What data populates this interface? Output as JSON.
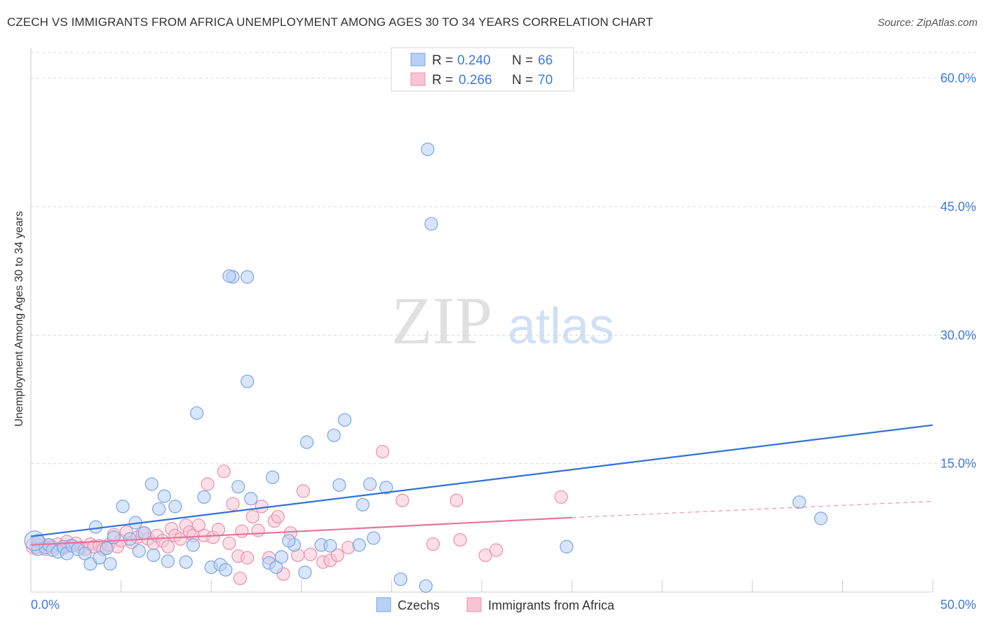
{
  "header": {
    "title": "CZECH VS IMMIGRANTS FROM AFRICA UNEMPLOYMENT AMONG AGES 30 TO 34 YEARS CORRELATION CHART",
    "source": "Source: ZipAtlas.com"
  },
  "watermark": {
    "zip": "ZIP",
    "atlas": "atlas"
  },
  "stats": [
    {
      "r_label": "R =",
      "r_value": "0.240",
      "n_label": "N =",
      "n_value": "66"
    },
    {
      "r_label": "R =",
      "r_value": "0.266",
      "n_label": "N =",
      "n_value": "70"
    }
  ],
  "legend_bottom": [
    "Czechs",
    "Immigrants from Africa"
  ],
  "colors": {
    "czech_fill": "#b8d0f5",
    "czech_stroke": "#7aa6e0",
    "czech_line": "#2f72d6",
    "africa_fill": "#f8c4d4",
    "africa_stroke": "#ec8fac",
    "africa_line": "#e8739b",
    "value_text": "#3d7bd9",
    "grid": "#d9d9d9"
  },
  "chart_data": {
    "type": "scatter",
    "title": "CZECH VS IMMIGRANTS FROM AFRICA UNEMPLOYMENT AMONG AGES 30 TO 34 YEARS CORRELATION CHART",
    "xlabel": "",
    "ylabel": "Unemployment Among Ages 30 to 34 years",
    "xlim": [
      0,
      50
    ],
    "ylim": [
      0,
      63
    ],
    "x_tick_labels": [
      "0.0%",
      "50.0%"
    ],
    "y_ticks": [
      15,
      30,
      45,
      60
    ],
    "y_tick_labels": [
      "15.0%",
      "30.0%",
      "45.0%",
      "60.0%"
    ],
    "series": [
      {
        "name": "Czechs",
        "r": 0.24,
        "n": 66,
        "trend": {
          "x": [
            0,
            50
          ],
          "y": [
            6.5,
            19.5
          ]
        },
        "points": [
          [
            0.4,
            6.0
          ],
          [
            0.4,
            5.0
          ],
          [
            0.8,
            5.2
          ],
          [
            1.0,
            5.5
          ],
          [
            1.2,
            4.9
          ],
          [
            1.5,
            4.7
          ],
          [
            1.8,
            5.3
          ],
          [
            2.0,
            4.5
          ],
          [
            2.3,
            5.4
          ],
          [
            2.6,
            5.0
          ],
          [
            3.0,
            4.5
          ],
          [
            3.3,
            3.3
          ],
          [
            3.6,
            7.6
          ],
          [
            3.8,
            4.0
          ],
          [
            4.2,
            5.1
          ],
          [
            4.4,
            3.3
          ],
          [
            4.6,
            6.4
          ],
          [
            5.1,
            10.0
          ],
          [
            5.5,
            6.2
          ],
          [
            5.8,
            8.1
          ],
          [
            6.0,
            4.8
          ],
          [
            6.3,
            6.9
          ],
          [
            6.7,
            12.6
          ],
          [
            6.8,
            4.3
          ],
          [
            7.1,
            9.7
          ],
          [
            7.4,
            11.2
          ],
          [
            7.6,
            3.6
          ],
          [
            8.0,
            10.0
          ],
          [
            8.6,
            3.5
          ],
          [
            9.0,
            5.5
          ],
          [
            9.6,
            11.1
          ],
          [
            10.0,
            2.9
          ],
          [
            10.5,
            3.2
          ],
          [
            10.8,
            2.6
          ],
          [
            11.5,
            12.3
          ],
          [
            12.0,
            24.6
          ],
          [
            12.2,
            10.9
          ],
          [
            13.2,
            3.4
          ],
          [
            13.4,
            13.4
          ],
          [
            13.6,
            2.9
          ],
          [
            13.9,
            4.1
          ],
          [
            14.6,
            5.5
          ],
          [
            15.2,
            2.3
          ],
          [
            16.1,
            5.5
          ],
          [
            16.6,
            5.4
          ],
          [
            17.1,
            12.5
          ],
          [
            17.4,
            20.1
          ],
          [
            18.4,
            10.2
          ],
          [
            18.8,
            12.6
          ],
          [
            19.7,
            12.2
          ],
          [
            20.5,
            1.5
          ],
          [
            21.9,
            0.7
          ],
          [
            29.7,
            5.3
          ],
          [
            42.6,
            10.5
          ],
          [
            43.8,
            8.6
          ],
          [
            11.2,
            36.8
          ],
          [
            12.0,
            36.8
          ],
          [
            22.0,
            51.7
          ],
          [
            22.2,
            43.0
          ],
          [
            9.2,
            20.9
          ],
          [
            15.3,
            17.5
          ],
          [
            16.8,
            18.3
          ],
          [
            18.2,
            5.5
          ],
          [
            11.0,
            36.9
          ],
          [
            14.3,
            6.0
          ],
          [
            19.0,
            6.3
          ]
        ]
      },
      {
        "name": "Immigrants from Africa",
        "r": 0.266,
        "n": 70,
        "trend": {
          "x": [
            0,
            30
          ],
          "y": [
            5.5,
            8.7
          ],
          "dashed_extension": {
            "x": [
              30,
              50
            ],
            "y": [
              8.7,
              10.6
            ]
          }
        },
        "points": [
          [
            0.3,
            5.2
          ],
          [
            0.5,
            5.8
          ],
          [
            0.8,
            5.0
          ],
          [
            1.0,
            5.5
          ],
          [
            1.2,
            5.3
          ],
          [
            1.5,
            5.6
          ],
          [
            1.8,
            5.1
          ],
          [
            2.0,
            5.9
          ],
          [
            2.2,
            5.4
          ],
          [
            2.5,
            5.7
          ],
          [
            2.8,
            5.2
          ],
          [
            3.0,
            5.0
          ],
          [
            3.3,
            5.6
          ],
          [
            3.5,
            5.3
          ],
          [
            3.8,
            5.4
          ],
          [
            4.0,
            5.0
          ],
          [
            4.3,
            5.5
          ],
          [
            4.6,
            6.7
          ],
          [
            4.8,
            5.3
          ],
          [
            5.0,
            6.0
          ],
          [
            5.3,
            7.0
          ],
          [
            5.6,
            5.8
          ],
          [
            5.9,
            6.4
          ],
          [
            6.2,
            6.9
          ],
          [
            6.5,
            6.2
          ],
          [
            6.8,
            5.7
          ],
          [
            7.0,
            6.6
          ],
          [
            7.3,
            6.0
          ],
          [
            7.6,
            5.3
          ],
          [
            7.8,
            7.4
          ],
          [
            8.0,
            6.6
          ],
          [
            8.3,
            6.2
          ],
          [
            8.6,
            7.8
          ],
          [
            8.8,
            7.0
          ],
          [
            9.0,
            6.6
          ],
          [
            9.3,
            7.8
          ],
          [
            9.6,
            6.6
          ],
          [
            9.8,
            12.6
          ],
          [
            10.1,
            6.4
          ],
          [
            10.4,
            7.3
          ],
          [
            10.7,
            14.1
          ],
          [
            11.0,
            5.7
          ],
          [
            11.2,
            10.3
          ],
          [
            11.5,
            4.2
          ],
          [
            11.7,
            7.1
          ],
          [
            12.0,
            4.0
          ],
          [
            12.3,
            8.8
          ],
          [
            12.6,
            7.2
          ],
          [
            12.8,
            10.0
          ],
          [
            13.2,
            4.0
          ],
          [
            13.5,
            8.3
          ],
          [
            13.7,
            8.8
          ],
          [
            14.0,
            2.1
          ],
          [
            14.4,
            6.9
          ],
          [
            14.8,
            4.3
          ],
          [
            15.1,
            11.8
          ],
          [
            15.5,
            4.4
          ],
          [
            16.2,
            3.5
          ],
          [
            16.6,
            3.7
          ],
          [
            17.0,
            4.3
          ],
          [
            17.6,
            5.2
          ],
          [
            19.5,
            16.4
          ],
          [
            20.6,
            10.7
          ],
          [
            22.3,
            5.6
          ],
          [
            23.6,
            10.7
          ],
          [
            23.8,
            6.1
          ],
          [
            25.2,
            4.3
          ],
          [
            25.8,
            4.9
          ],
          [
            29.4,
            11.1
          ],
          [
            11.6,
            1.6
          ]
        ]
      }
    ]
  }
}
